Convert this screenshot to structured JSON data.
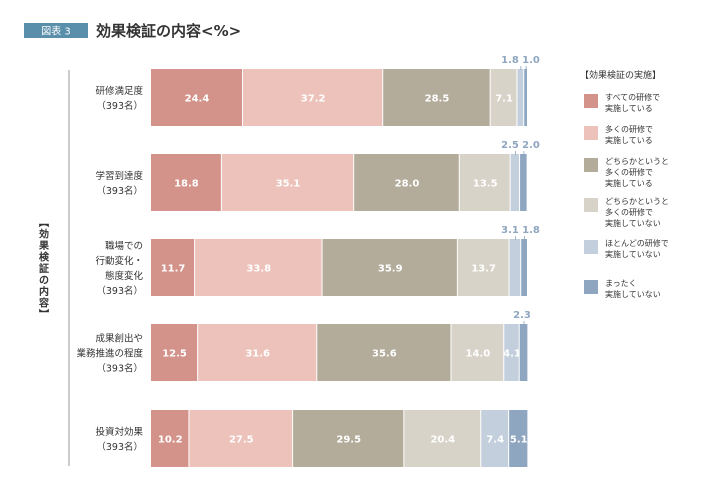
{
  "figure": {
    "badge": "図表 3",
    "title": "効果検証の内容<%>",
    "vertical_label": "【効果検証の内容】"
  },
  "legend": {
    "title": "【効果検証の実施】",
    "position": "right"
  },
  "chart_data": {
    "type": "bar",
    "orientation": "horizontal",
    "stacked": true,
    "unit": "%",
    "xlim": [
      0,
      100
    ],
    "categories": [
      [
        "研修満足度",
        "（393名）"
      ],
      [
        "学習到達度",
        "（393名）"
      ],
      [
        "職場での",
        "行動変化・",
        "態度変化",
        "（393名）"
      ],
      [
        "成果創出や",
        "業務推進の程度",
        "（393名）"
      ],
      [
        "投資対効果",
        "（393名）"
      ]
    ],
    "series": [
      {
        "name": "すべての研修で\n実施している",
        "color": "#d4938a",
        "values": [
          24.4,
          18.8,
          11.7,
          12.5,
          10.2
        ]
      },
      {
        "name": "多くの研修で\n実施している",
        "color": "#edc2ba",
        "values": [
          37.2,
          35.1,
          33.8,
          31.6,
          27.5
        ]
      },
      {
        "name": "どちらかというと\n多くの研修で\n実施している",
        "color": "#b3ac9b",
        "values": [
          28.5,
          28.0,
          35.9,
          35.6,
          29.5
        ]
      },
      {
        "name": "どちらかというと\n多くの研修で\n実施していない",
        "color": "#d8d3c8",
        "values": [
          7.1,
          13.5,
          13.7,
          14.0,
          20.4
        ]
      },
      {
        "name": "ほとんどの研修で\n実施していない",
        "color": "#c3cfdd",
        "values": [
          1.8,
          2.5,
          3.1,
          4.1,
          7.4
        ]
      },
      {
        "name": "まったく\n実施していない",
        "color": "#8fa6c0",
        "values": [
          1.0,
          2.0,
          1.8,
          2.3,
          5.1
        ]
      }
    ],
    "grid": false
  }
}
